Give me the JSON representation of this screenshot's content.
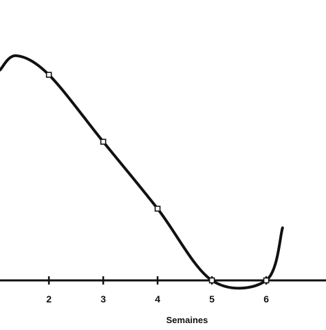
{
  "chart_data": {
    "type": "line",
    "xlabel": "Semaines",
    "ylabel": "",
    "title": "",
    "x_ticks": [
      "2",
      "3",
      "4",
      "5",
      "6"
    ],
    "xlim": [
      1.1,
      7.1
    ],
    "ylim": [
      0,
      1
    ],
    "grid": false,
    "legend": "none",
    "smooth": true,
    "series": [
      {
        "name": "",
        "color": "#111111",
        "points": [
          {
            "x": 1.1,
            "y": 0.88,
            "marker": false
          },
          {
            "x": 1.4,
            "y": 0.94,
            "marker": false
          },
          {
            "x": 2.0,
            "y": 0.86,
            "marker": true
          },
          {
            "x": 3.0,
            "y": 0.58,
            "marker": true
          },
          {
            "x": 4.0,
            "y": 0.3,
            "marker": true
          },
          {
            "x": 5.0,
            "y": 0.0,
            "marker": true
          },
          {
            "x": 6.0,
            "y": 0.0,
            "marker": true
          },
          {
            "x": 6.3,
            "y": 0.22,
            "marker": false
          }
        ]
      }
    ]
  }
}
